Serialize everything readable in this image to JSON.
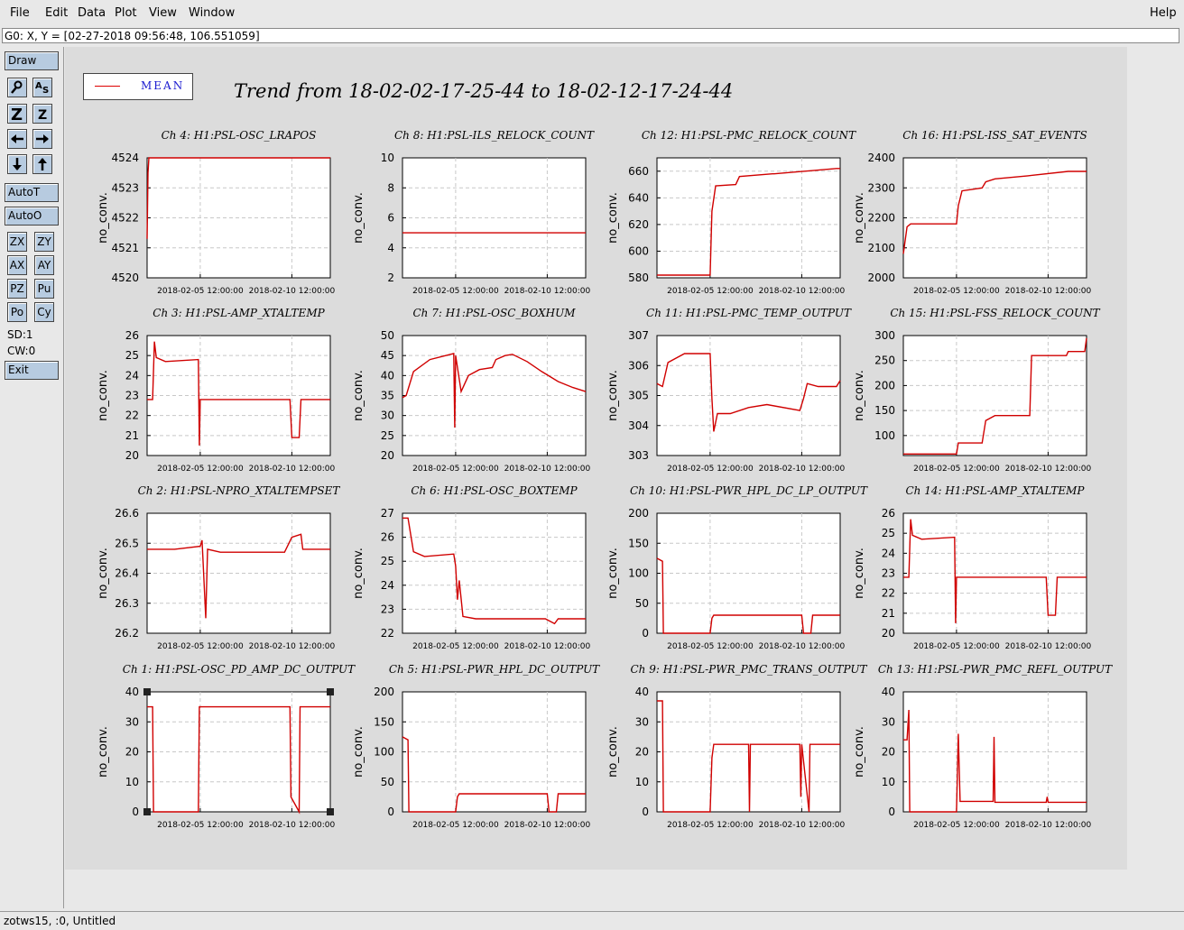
{
  "menu": {
    "file": "File",
    "edit": "Edit",
    "data": "Data",
    "plot": "Plot",
    "view": "View",
    "window": "Window",
    "help": "Help"
  },
  "status": "G0: X, Y = [02-27-2018 09:56:48, 106.551059]",
  "toolbar": {
    "draw": "Draw",
    "autot": "AutoT",
    "autoo": "AutoO",
    "zx": "ZX",
    "zy": "ZY",
    "ax": "AX",
    "ay": "AY",
    "pz": "PZ",
    "pu": "Pu",
    "po": "Po",
    "cy": "Cy",
    "sd": "SD:1",
    "cw": "CW:0",
    "exit": "Exit",
    "icons": [
      "magnify-icon",
      "autoscale-icon",
      "zoom-in-icon",
      "zoom-out-icon",
      "arrow-left-icon",
      "arrow-right-icon",
      "arrow-down-icon",
      "arrow-up-icon"
    ]
  },
  "legend": {
    "label": "MEAN",
    "color": "#d00000"
  },
  "title": "Trend from 18-02-02-17-25-44 to 18-02-12-17-24-44",
  "footer": "zotws15, :0, Untitled",
  "chart_data": [
    {
      "type": "line",
      "title": "Ch 4: H1:PSL-OSC_LRAPOS",
      "ylabel": "no_conv.",
      "yticks": [
        "4520",
        "4521",
        "4522",
        "4523",
        "4524"
      ],
      "ylim": [
        4520,
        4524
      ],
      "xticks": [
        "2018-02-05 12:00:00",
        "2018-02-10 12:00:00"
      ],
      "xlim": [
        0,
        10
      ],
      "x": [
        0,
        0.05,
        0.1,
        0.2,
        10
      ],
      "values": [
        4521.3,
        4523.5,
        4524,
        4524,
        4524
      ]
    },
    {
      "type": "line",
      "title": "Ch 8: H1:PSL-ILS_RELOCK_COUNT",
      "ylabel": "no_conv.",
      "yticks": [
        "2",
        "4",
        "6",
        "8",
        "10"
      ],
      "ylim": [
        2,
        10
      ],
      "xticks": [
        "2018-02-05 12:00:00",
        "2018-02-10 12:00:00"
      ],
      "xlim": [
        0,
        10
      ],
      "x": [
        0,
        10
      ],
      "values": [
        5,
        5
      ]
    },
    {
      "type": "line",
      "title": "Ch 12: H1:PSL-PMC_RELOCK_COUNT",
      "ylabel": "no_conv.",
      "yticks": [
        "580",
        "600",
        "620",
        "640",
        "660"
      ],
      "ylim": [
        580,
        670
      ],
      "xticks": [
        "2018-02-05 12:00:00",
        "2018-02-10 12:00:00"
      ],
      "xlim": [
        0,
        10
      ],
      "x": [
        0,
        2.9,
        3.0,
        3.2,
        4.3,
        4.5,
        6.3,
        6.4,
        9.8,
        10
      ],
      "values": [
        582,
        582,
        630,
        649,
        650,
        656,
        658,
        658,
        662,
        662
      ]
    },
    {
      "type": "line",
      "title": "Ch 16: H1:PSL-ISS_SAT_EVENTS",
      "ylabel": "no_conv.",
      "yticks": [
        "2000",
        "2100",
        "2200",
        "2300",
        "2400"
      ],
      "ylim": [
        2000,
        2400
      ],
      "xticks": [
        "2018-02-05 12:00:00",
        "2018-02-10 12:00:00"
      ],
      "xlim": [
        0,
        10
      ],
      "x": [
        0,
        0.2,
        0.4,
        2.9,
        3.0,
        3.2,
        4.3,
        4.5,
        5.0,
        6.8,
        9.0,
        10
      ],
      "values": [
        2080,
        2170,
        2180,
        2180,
        2240,
        2290,
        2300,
        2320,
        2330,
        2340,
        2355,
        2355
      ]
    },
    {
      "type": "line",
      "title": "Ch 3: H1:PSL-AMP_XTALTEMP",
      "ylabel": "no_conv.",
      "yticks": [
        "20",
        "21",
        "22",
        "23",
        "24",
        "25",
        "26"
      ],
      "ylim": [
        20,
        26
      ],
      "xticks": [
        "2018-02-05 12:00:00",
        "2018-02-10 12:00:00"
      ],
      "xlim": [
        0,
        10
      ],
      "x": [
        0,
        0.3,
        0.4,
        0.5,
        1.0,
        2.8,
        2.85,
        2.9,
        3.0,
        7.8,
        7.9,
        8.3,
        8.4,
        8.5,
        10
      ],
      "values": [
        22.8,
        22.8,
        25.7,
        24.9,
        24.7,
        24.8,
        20.5,
        22.8,
        22.8,
        22.8,
        20.9,
        20.9,
        22.8,
        22.8,
        22.8
      ]
    },
    {
      "type": "line",
      "title": "Ch 7: H1:PSL-OSC_BOXHUM",
      "ylabel": "no_conv.",
      "yticks": [
        "20",
        "25",
        "30",
        "35",
        "40",
        "45",
        "50"
      ],
      "ylim": [
        20,
        50
      ],
      "xticks": [
        "2018-02-05 12:00:00",
        "2018-02-10 12:00:00"
      ],
      "xlim": [
        0,
        10
      ],
      "x": [
        0,
        0.2,
        0.6,
        1.5,
        2.8,
        2.85,
        2.9,
        3.2,
        3.6,
        4.2,
        4.9,
        5.1,
        5.6,
        6.0,
        6.8,
        7.6,
        8.5,
        9.3,
        10
      ],
      "values": [
        34.5,
        35,
        41,
        44,
        45.5,
        27,
        45,
        36,
        40,
        41.5,
        42,
        44,
        45,
        45.3,
        43.5,
        41,
        38.5,
        37,
        36
      ]
    },
    {
      "type": "line",
      "title": "Ch 11: H1:PSL-PMC_TEMP_OUTPUT",
      "ylabel": "no_conv.",
      "yticks": [
        "303",
        "304",
        "305",
        "306",
        "307"
      ],
      "ylim": [
        303,
        307
      ],
      "xticks": [
        "2018-02-05 12:00:00",
        "2018-02-10 12:00:00"
      ],
      "xlim": [
        0,
        10
      ],
      "x": [
        0,
        0.3,
        0.6,
        1.5,
        2.9,
        3.0,
        3.1,
        3.3,
        4.0,
        5.0,
        6.0,
        7.8,
        8.0,
        8.2,
        8.8,
        9.8,
        10
      ],
      "values": [
        305.4,
        305.3,
        306.1,
        306.4,
        306.4,
        304.9,
        303.8,
        304.4,
        304.4,
        304.6,
        304.7,
        304.5,
        304.9,
        305.4,
        305.3,
        305.3,
        305.5
      ]
    },
    {
      "type": "line",
      "title": "Ch 15: H1:PSL-FSS_RELOCK_COUNT",
      "ylabel": "no_conv.",
      "yticks": [
        "100",
        "150",
        "200",
        "250",
        "300"
      ],
      "ylim": [
        60,
        300
      ],
      "xticks": [
        "2018-02-05 12:00:00",
        "2018-02-10 12:00:00"
      ],
      "xlim": [
        0,
        10
      ],
      "x": [
        0,
        2.9,
        3.0,
        4.3,
        4.5,
        5.0,
        6.9,
        7.0,
        8.9,
        9.0,
        9.9,
        10
      ],
      "values": [
        63,
        63,
        85,
        85,
        130,
        140,
        140,
        260,
        260,
        268,
        268,
        295
      ]
    },
    {
      "type": "line",
      "title": "Ch 2: H1:PSL-NPRO_XTALTEMPSET",
      "ylabel": "no_conv.",
      "yticks": [
        "26.2",
        "26.3",
        "26.4",
        "26.5",
        "26.6"
      ],
      "ylim": [
        26.2,
        26.6
      ],
      "xticks": [
        "2018-02-05 12:00:00",
        "2018-02-10 12:00:00"
      ],
      "xlim": [
        0,
        10
      ],
      "x": [
        0,
        1.5,
        2.9,
        3.0,
        3.2,
        3.3,
        4.0,
        5.5,
        7.5,
        7.9,
        8.4,
        8.5,
        9.0,
        10
      ],
      "values": [
        26.48,
        26.48,
        26.49,
        26.51,
        26.25,
        26.48,
        26.47,
        26.47,
        26.47,
        26.52,
        26.53,
        26.48,
        26.48,
        26.48
      ]
    },
    {
      "type": "line",
      "title": "Ch 6: H1:PSL-OSC_BOXTEMP",
      "ylabel": "no_conv.",
      "yticks": [
        "22",
        "23",
        "24",
        "25",
        "26",
        "27"
      ],
      "ylim": [
        22,
        27
      ],
      "xticks": [
        "2018-02-05 12:00:00",
        "2018-02-10 12:00:00"
      ],
      "xlim": [
        0,
        10
      ],
      "x": [
        0,
        0.3,
        0.6,
        1.2,
        2.8,
        2.9,
        3.0,
        3.1,
        3.3,
        4.0,
        6.0,
        7.8,
        8.3,
        8.5,
        10
      ],
      "values": [
        26.8,
        26.8,
        25.4,
        25.2,
        25.3,
        24.8,
        23.4,
        24.2,
        22.7,
        22.6,
        22.6,
        22.6,
        22.4,
        22.6,
        22.6
      ]
    },
    {
      "type": "line",
      "title": "Ch 10: H1:PSL-PWR_HPL_DC_LP_OUTPUT",
      "ylabel": "no_conv.",
      "yticks": [
        "0",
        "50",
        "100",
        "150",
        "200"
      ],
      "ylim": [
        0,
        200
      ],
      "xticks": [
        "2018-02-05 12:00:00",
        "2018-02-10 12:00:00"
      ],
      "xlim": [
        0,
        10
      ],
      "x": [
        0,
        0.3,
        0.35,
        2.9,
        3.0,
        3.1,
        7.9,
        8.0,
        8.4,
        8.5,
        10
      ],
      "values": [
        125,
        120,
        0,
        0,
        25,
        30,
        30,
        0,
        0,
        30,
        30
      ]
    },
    {
      "type": "line",
      "title": "Ch 14: H1:PSL-AMP_XTALTEMP",
      "ylabel": "no_conv.",
      "yticks": [
        "20",
        "21",
        "22",
        "23",
        "24",
        "25",
        "26"
      ],
      "ylim": [
        20,
        26
      ],
      "xticks": [
        "2018-02-05 12:00:00",
        "2018-02-10 12:00:00"
      ],
      "xlim": [
        0,
        10
      ],
      "x": [
        0,
        0.3,
        0.4,
        0.5,
        1.0,
        2.8,
        2.85,
        2.9,
        3.0,
        7.8,
        7.9,
        8.3,
        8.4,
        8.5,
        10
      ],
      "values": [
        22.8,
        22.8,
        25.7,
        24.9,
        24.7,
        24.8,
        20.5,
        22.8,
        22.8,
        22.8,
        20.9,
        20.9,
        22.8,
        22.8,
        22.8
      ]
    },
    {
      "type": "line",
      "title": "Ch 1: H1:PSL-OSC_PD_AMP_DC_OUTPUT",
      "ylabel": "no_conv.",
      "yticks": [
        "0",
        "10",
        "20",
        "30",
        "40"
      ],
      "ylim": [
        0,
        40
      ],
      "xticks": [
        "2018-02-05 12:00:00",
        "2018-02-10 12:00:00"
      ],
      "xlim": [
        0,
        10
      ],
      "x": [
        0,
        0.3,
        0.35,
        2.8,
        2.85,
        2.9,
        7.8,
        7.85,
        8.3,
        8.35,
        10
      ],
      "values": [
        35,
        35,
        0,
        0,
        35,
        35,
        35,
        5,
        0,
        35,
        35
      ]
    },
    {
      "type": "line",
      "title": "Ch 5: H1:PSL-PWR_HPL_DC_OUTPUT",
      "ylabel": "no_conv.",
      "yticks": [
        "0",
        "50",
        "100",
        "150",
        "200"
      ],
      "ylim": [
        0,
        200
      ],
      "xticks": [
        "2018-02-05 12:00:00",
        "2018-02-10 12:00:00"
      ],
      "xlim": [
        0,
        10
      ],
      "x": [
        0,
        0.3,
        0.35,
        2.9,
        3.0,
        3.1,
        7.9,
        8.0,
        8.4,
        8.5,
        10
      ],
      "values": [
        125,
        120,
        0,
        0,
        25,
        30,
        30,
        0,
        0,
        30,
        30
      ]
    },
    {
      "type": "line",
      "title": "Ch 9: H1:PSL-PWR_PMC_TRANS_OUTPUT",
      "ylabel": "no_conv.",
      "yticks": [
        "0",
        "10",
        "20",
        "30",
        "40"
      ],
      "ylim": [
        0,
        40
      ],
      "xticks": [
        "2018-02-05 12:00:00",
        "2018-02-10 12:00:00"
      ],
      "xlim": [
        0,
        10
      ],
      "x": [
        0,
        0.3,
        0.35,
        2.9,
        3.0,
        3.1,
        5.0,
        5.05,
        5.1,
        7.8,
        7.85,
        7.9,
        8.3,
        8.35,
        10
      ],
      "values": [
        37,
        37,
        0,
        0,
        18,
        22.5,
        22.5,
        0,
        22.5,
        22.5,
        5,
        22.5,
        0,
        22.5,
        22.5
      ]
    },
    {
      "type": "line",
      "title": "Ch 13: H1:PSL-PWR_PMC_REFL_OUTPUT",
      "ylabel": "no_conv.",
      "yticks": [
        "0",
        "10",
        "20",
        "30",
        "40"
      ],
      "ylim": [
        0,
        40
      ],
      "xticks": [
        "2018-02-05 12:00:00",
        "2018-02-10 12:00:00"
      ],
      "xlim": [
        0,
        10
      ],
      "x": [
        0,
        0.2,
        0.3,
        0.35,
        2.9,
        3.0,
        3.1,
        3.2,
        4.9,
        4.95,
        5.0,
        7.8,
        7.85,
        7.9,
        8.3,
        10
      ],
      "values": [
        24,
        24,
        34,
        0,
        0,
        26,
        3.5,
        3.5,
        3.5,
        25,
        3.2,
        3.2,
        5,
        3.2,
        3.2,
        3.2
      ]
    }
  ]
}
